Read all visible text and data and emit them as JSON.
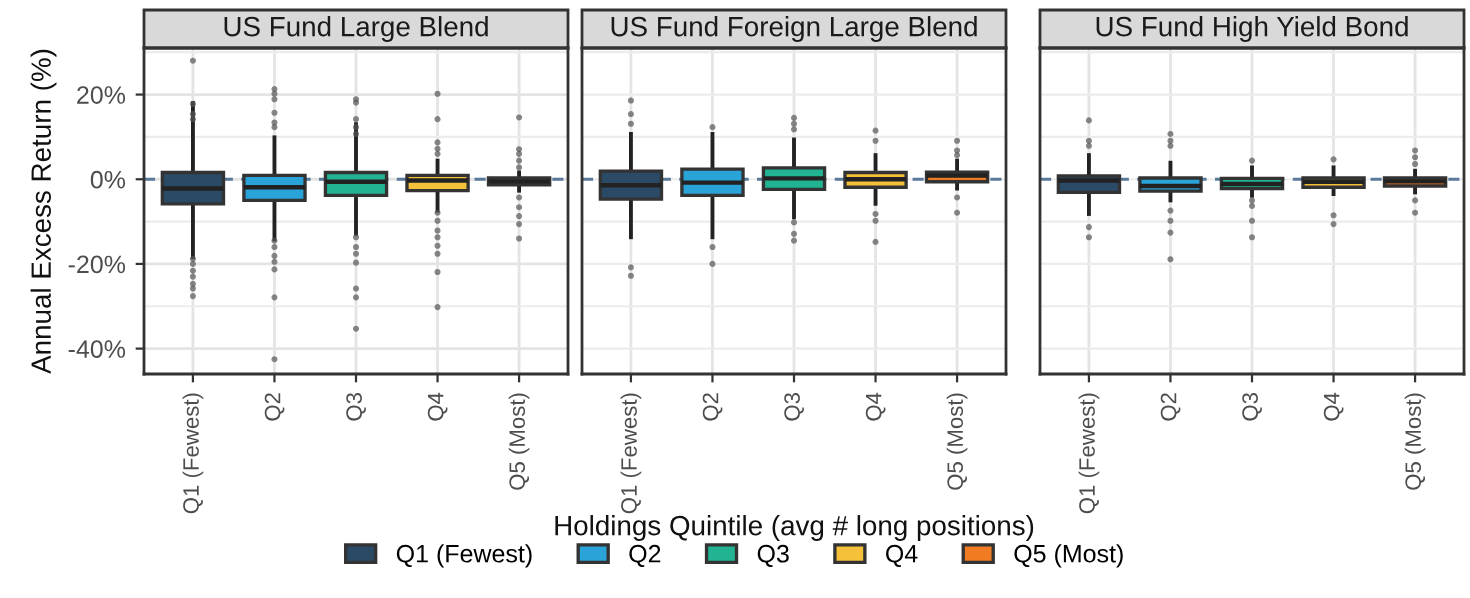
{
  "chart_data": [
    {
      "type": "box",
      "title": "US Fund Large Blend",
      "ylabel": "Annual Excess Return (%)",
      "legend": "bottom",
      "categories": [
        "Q1 (Fewest)",
        "Q2",
        "Q3",
        "Q4",
        "Q5 (Most)"
      ],
      "ylim": [
        -46,
        31
      ],
      "yticks": [
        {
          "value": -40,
          "label": "-40%"
        },
        {
          "value": -30,
          "label": null
        },
        {
          "value": -20,
          "label": "-20%"
        },
        {
          "value": -10,
          "label": null
        },
        {
          "value": 0,
          "label": "0%"
        },
        {
          "value": 10,
          "label": null
        },
        {
          "value": 20,
          "label": "20%"
        },
        {
          "value": 30,
          "label": null
        }
      ],
      "grid": true,
      "ref_lines": [
        {
          "axis": "y",
          "value": 0,
          "color": "#5a7a9a",
          "line_style": "dashed"
        }
      ],
      "series": [
        {
          "name": "Q1 (Fewest)",
          "color": "#2b4a66",
          "boxes": [
            {
              "low": -18.4,
              "q1": -5.8,
              "median": -2.2,
              "q3": 1.6,
              "high": 18,
              "outliers": [
                28,
                17.8,
                15.4,
                14.2,
                -18.8,
                -20,
                -21.6,
                -23,
                -24.7,
                -25.8,
                -27.6
              ]
            },
            null,
            null,
            null,
            null
          ]
        },
        {
          "name": "Q2",
          "color": "#2aa3d8",
          "boxes": [
            null,
            {
              "low": -14.2,
              "q1": -5,
              "median": -1.9,
              "q3": 0.9,
              "high": 9.9,
              "outliers": [
                21.3,
                20.2,
                18.9,
                15.7,
                13.4,
                12.3,
                -14.5,
                -16,
                -18.1,
                -19.5,
                -21.3,
                -27.9,
                -42.5
              ]
            },
            null,
            null,
            null
          ]
        },
        {
          "name": "Q3",
          "color": "#22b393",
          "boxes": [
            null,
            null,
            {
              "low": -12.9,
              "q1": -3.8,
              "median": -0.6,
              "q3": 1.6,
              "high": 13,
              "outliers": [
                18.9,
                18.1,
                14.2,
                12.3,
                10.7,
                -13.7,
                -16,
                -17.6,
                -19.7,
                -25.8,
                -27.9,
                -35.3
              ]
            },
            null,
            null
          ]
        },
        {
          "name": "Q4",
          "color": "#f5c13b",
          "boxes": [
            null,
            null,
            null,
            {
              "low": -7.4,
              "q1": -2.7,
              "median": -0.3,
              "q3": 0.9,
              "high": 4.4,
              "outliers": [
                20.2,
                14.2,
                8.7,
                7.2,
                6,
                -7.9,
                -9.8,
                -12.1,
                -13.7,
                -15.7,
                -17.6,
                -21.9,
                -30.2
              ]
            },
            null
          ]
        },
        {
          "name": "Q5 (Most)",
          "color": "#f07b22",
          "boxes": [
            null,
            null,
            null,
            null,
            {
              "low": -2.7,
              "q1": -1.3,
              "median": -0.5,
              "q3": 0.3,
              "high": 1.6,
              "outliers": [
                14.6,
                7.1,
                6,
                4.4,
                2.8,
                -4.3,
                -6.6,
                -8.7,
                -10.6,
                -14
              ]
            }
          ]
        }
      ]
    },
    {
      "type": "box",
      "title": "US Fund Foreign Large Blend",
      "xlabel": "Holdings Quintile (avg # long positions)",
      "tick_labels": "x",
      "categories": [
        "Q1 (Fewest)",
        "Q2",
        "Q3",
        "Q4",
        "Q5 (Most)"
      ],
      "ylim": [
        -46,
        31
      ],
      "yticks": [
        {
          "value": -40,
          "label": null
        },
        {
          "value": -30,
          "label": null
        },
        {
          "value": -20,
          "label": null
        },
        {
          "value": -10,
          "label": null
        },
        {
          "value": 0,
          "label": null
        },
        {
          "value": 10,
          "label": null
        },
        {
          "value": 20,
          "label": null
        },
        {
          "value": 30,
          "label": null
        }
      ],
      "grid": true,
      "ref_lines": [
        {
          "axis": "y",
          "value": 0,
          "color": "#5a7a9a",
          "line_style": "dashed"
        }
      ],
      "series": [
        {
          "color": "#2b4a66",
          "boxes": [
            {
              "low": -13.7,
              "q1": -4.7,
              "median": -1.4,
              "q3": 1.9,
              "high": 10.7,
              "outliers": [
                18.6,
                15.4,
                13.1,
                -20.8,
                -22.8
              ]
            },
            null,
            null,
            null,
            null
          ]
        },
        {
          "color": "#2aa3d8",
          "boxes": [
            null,
            {
              "low": -13.7,
              "q1": -3.8,
              "median": -0.8,
              "q3": 2.4,
              "high": 10.7,
              "outliers": [
                12.3,
                -16,
                -20
              ]
            },
            null,
            null,
            null
          ]
        },
        {
          "color": "#22b393",
          "boxes": [
            null,
            null,
            {
              "low": -9,
              "q1": -2.4,
              "median": 0.2,
              "q3": 2.7,
              "high": 9.4,
              "outliers": [
                14.5,
                13.1,
                11.8,
                -10.2,
                -12.9,
                -14.5
              ]
            },
            null,
            null
          ]
        },
        {
          "color": "#f5c13b",
          "boxes": [
            null,
            null,
            null,
            {
              "low": -5.8,
              "q1": -1.9,
              "median": 0,
              "q3": 1.6,
              "high": 5.7,
              "outliers": [
                11.5,
                9.1,
                -8.2,
                -9.8,
                -14.8
              ]
            },
            null
          ]
        },
        {
          "color": "#f07b22",
          "boxes": [
            null,
            null,
            null,
            null,
            {
              "low": -2.2,
              "q1": -0.6,
              "median": 0.9,
              "q3": 1.7,
              "high": 4.4,
              "outliers": [
                9.1,
                6.8,
                5.7,
                -4.3,
                -7.9
              ]
            }
          ]
        }
      ]
    },
    {
      "type": "box",
      "title": "US Fund High Yield Bond",
      "tick_labels": "x",
      "categories": [
        "Q1 (Fewest)",
        "Q2",
        "Q3",
        "Q4",
        "Q5 (Most)"
      ],
      "ylim": [
        -46,
        31
      ],
      "yticks": [
        {
          "value": -40,
          "label": null
        },
        {
          "value": -30,
          "label": null
        },
        {
          "value": -20,
          "label": null
        },
        {
          "value": -10,
          "label": null
        },
        {
          "value": 0,
          "label": null
        },
        {
          "value": 10,
          "label": null
        },
        {
          "value": 20,
          "label": null
        },
        {
          "value": 30,
          "label": null
        }
      ],
      "grid": true,
      "ref_lines": [
        {
          "axis": "y",
          "value": 0,
          "color": "#5a7a9a",
          "line_style": "dashed"
        }
      ],
      "series": [
        {
          "color": "#2b4a66",
          "boxes": [
            {
              "low": -8.2,
              "q1": -3.1,
              "median": -0.3,
              "q3": 0.8,
              "high": 5.7,
              "outliers": [
                13.9,
                9.1,
                7.9,
                -11.3,
                -13.7
              ]
            },
            null,
            null,
            null,
            null
          ]
        },
        {
          "color": "#2aa3d8",
          "boxes": [
            null,
            {
              "low": -5,
              "q1": -2.8,
              "median": -1.6,
              "q3": 0.3,
              "high": 3.9,
              "outliers": [
                10.7,
                9.1,
                7.9,
                -7.4,
                -9.8,
                -12.6,
                -18.9
              ]
            },
            null,
            null,
            null
          ]
        },
        {
          "color": "#22b393",
          "boxes": [
            null,
            null,
            {
              "low": -3.9,
              "q1": -2.2,
              "median": -1.1,
              "q3": 0.2,
              "high": 2.8,
              "outliers": [
                4.4,
                -5,
                -6.3,
                -9.8,
                -13.7
              ]
            },
            null,
            null
          ]
        },
        {
          "color": "#f5c13b",
          "boxes": [
            null,
            null,
            null,
            {
              "low": -3.5,
              "q1": -1.9,
              "median": -0.6,
              "q3": 0.3,
              "high": 2.8,
              "outliers": [
                4.7,
                -8.5,
                -10.6
              ]
            },
            null
          ]
        },
        {
          "color": "#f07b22",
          "boxes": [
            null,
            null,
            null,
            null,
            {
              "low": -3.1,
              "q1": -1.6,
              "median": -0.5,
              "q3": 0.3,
              "high": 2,
              "outliers": [
                6.8,
                5.2,
                3.6,
                -5,
                -7.9
              ]
            }
          ]
        }
      ]
    }
  ]
}
